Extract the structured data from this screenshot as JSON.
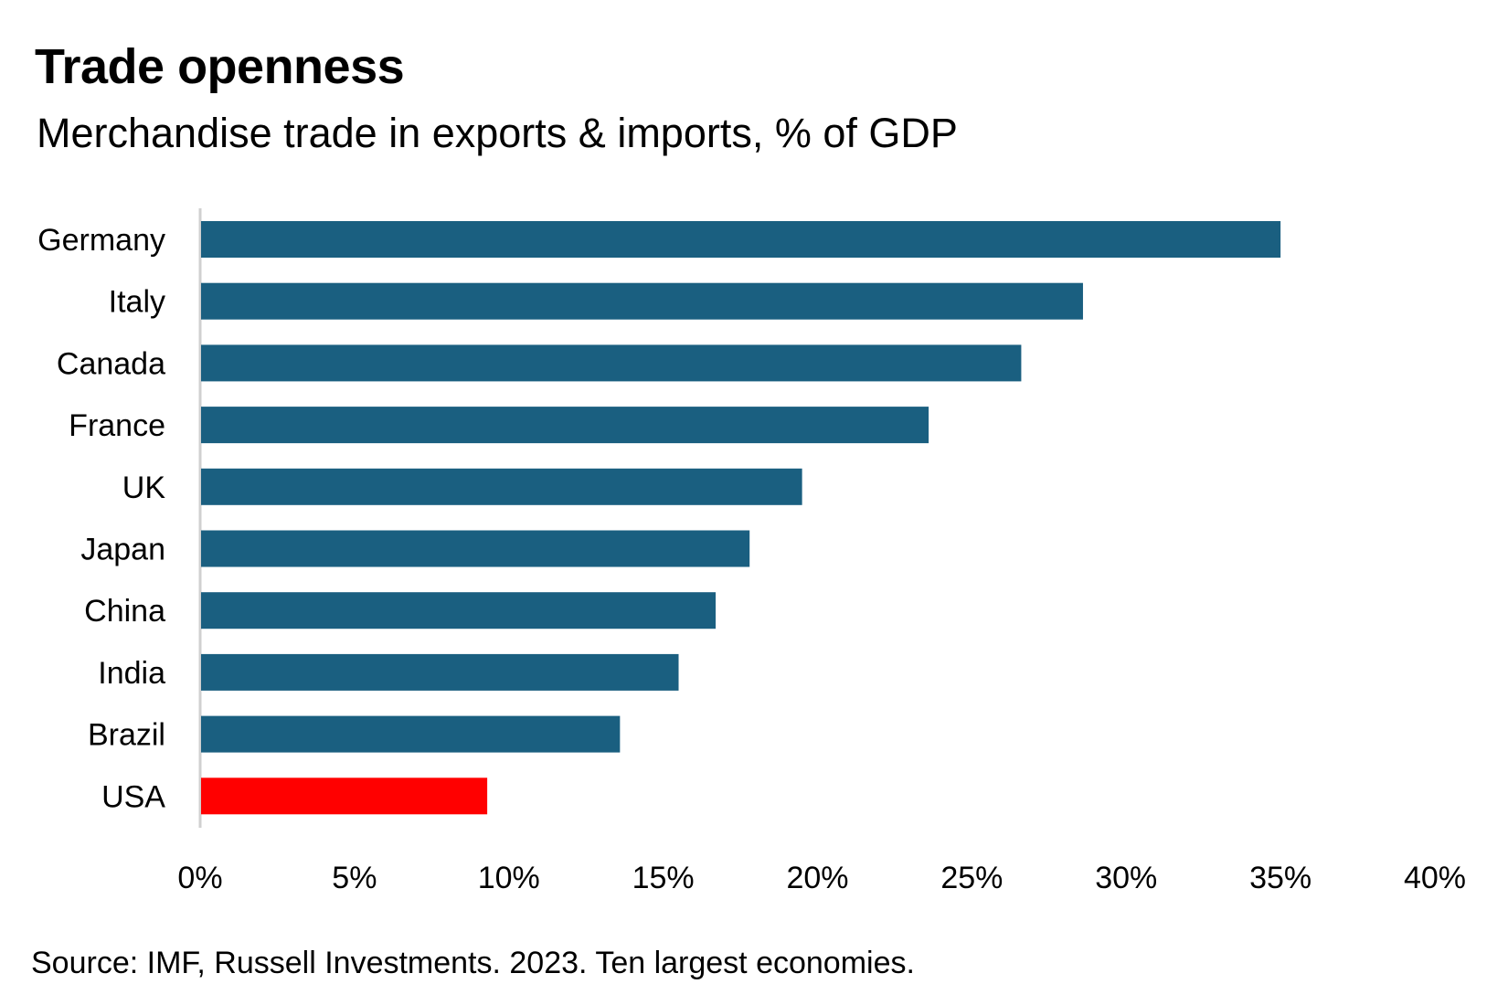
{
  "chart_data": {
    "type": "bar",
    "orientation": "horizontal",
    "title": "Trade openness",
    "subtitle": "Merchandise trade in exports & imports, % of GDP",
    "categories": [
      "Germany",
      "Italy",
      "Canada",
      "France",
      "UK",
      "Japan",
      "China",
      "India",
      "Brazil",
      "USA"
    ],
    "values": [
      35.0,
      28.6,
      26.6,
      23.6,
      19.5,
      17.8,
      16.7,
      15.5,
      13.6,
      9.3
    ],
    "colors": [
      "#1a5f80",
      "#1a5f80",
      "#1a5f80",
      "#1a5f80",
      "#1a5f80",
      "#1a5f80",
      "#1a5f80",
      "#1a5f80",
      "#1a5f80",
      "#ff0000"
    ],
    "xlim": [
      0,
      40
    ],
    "xticks": [
      0,
      5,
      10,
      15,
      20,
      25,
      30,
      35,
      40
    ],
    "xtick_labels": [
      "0%",
      "5%",
      "10%",
      "15%",
      "20%",
      "25%",
      "30%",
      "35%",
      "40%"
    ],
    "xlabel": "",
    "ylabel": "",
    "grid": false,
    "legend": "none",
    "source": "Source: IMF, Russell Investments. 2023. Ten largest economies."
  }
}
